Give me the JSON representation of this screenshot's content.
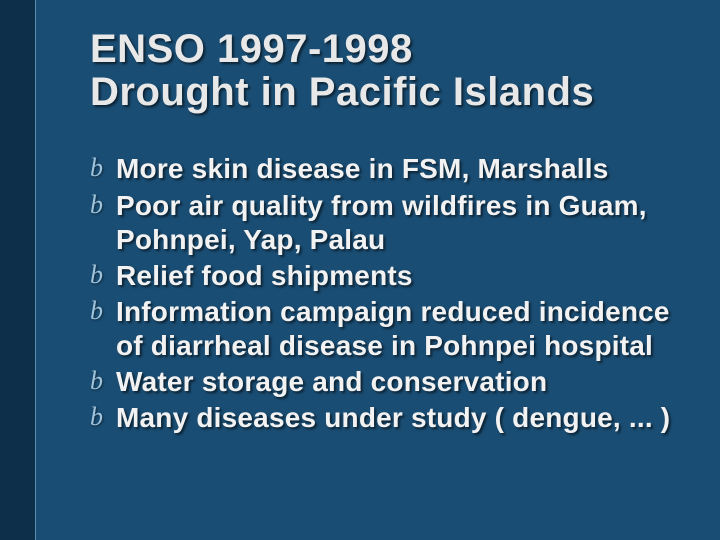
{
  "slide": {
    "background_color": "#1a4d73",
    "side_stripe_color": "#0e2f4a",
    "title": {
      "line1": "ENSO 1997-1998",
      "line2": "Drought in Pacific Islands",
      "font_family": "Arial Narrow",
      "font_weight": 700,
      "font_size_pt": 40,
      "color": "#e8e8e8",
      "shadow": "2px 2px 2px rgba(0,0,0,0.55)"
    },
    "bullet_style": {
      "glyph": "b",
      "glyph_font": "italic serif",
      "glyph_color": "#9fc4dc",
      "text_color": "#f2f2f2",
      "text_font": "Arial Narrow",
      "text_weight": 700,
      "text_size_pt": 28
    },
    "bullets": [
      "More skin disease in FSM, Marshalls",
      "Poor air quality from wildfires in Guam, Pohnpei, Yap, Palau",
      "Relief food shipments",
      "Information campaign reduced incidence of diarrheal disease in Pohnpei hospital",
      "Water storage and conservation",
      "Many diseases under study ( dengue, ... )"
    ]
  }
}
